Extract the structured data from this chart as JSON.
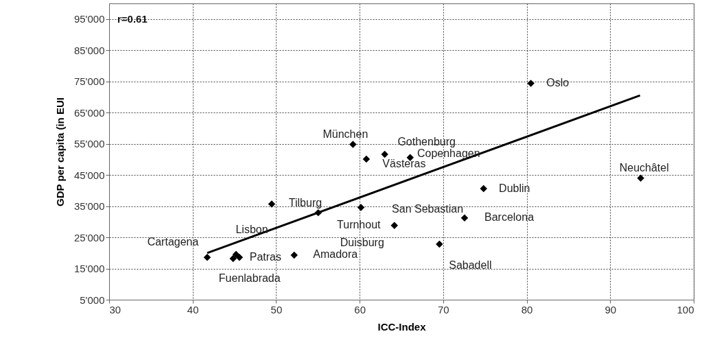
{
  "chart_data": {
    "type": "scatter",
    "xlabel": "ICC-Index",
    "ylabel": "GDP per capita (in EUI",
    "xlim": [
      30,
      100
    ],
    "xticks": [
      30,
      40,
      50,
      60,
      70,
      80,
      90,
      100
    ],
    "ylim": [
      5000,
      100000
    ],
    "yticks": [
      {
        "value": 5000,
        "label": "5'000"
      },
      {
        "value": 15000,
        "label": "15'000"
      },
      {
        "value": 25000,
        "label": "25'000"
      },
      {
        "value": 35000,
        "label": "35'000"
      },
      {
        "value": 45000,
        "label": "45'000"
      },
      {
        "value": 55000,
        "label": "55'000"
      },
      {
        "value": 65000,
        "label": "65'000"
      },
      {
        "value": 75000,
        "label": "75'000"
      },
      {
        "value": 85000,
        "label": "85'000"
      },
      {
        "value": 95000,
        "label": "95'000"
      }
    ],
    "grid": true,
    "marker": "diamond",
    "series": [
      {
        "color": "#000000",
        "x": [
          41.75,
          44.85,
          45.2,
          45.6,
          52.16,
          49.47,
          55.04,
          59.2,
          60.8,
          63.0,
          66.05,
          74.84,
          60.16,
          72.56,
          64.16,
          69.55,
          80.5,
          93.65
        ],
        "values": [
          18600,
          18200,
          19500,
          18600,
          19300,
          35700,
          32900,
          54800,
          50100,
          51600,
          50600,
          40600,
          34600,
          31200,
          28800,
          22800,
          74400,
          44000
        ]
      },
      {
        "type": "line",
        "color": "#000000",
        "marker": "none",
        "line_style": "solid",
        "x": [
          41.75,
          93.57
        ],
        "values": [
          20000,
          70500
        ]
      }
    ],
    "annotations": [
      "r=0.61",
      {
        "text": "Cartagena",
        "x": 41.75,
        "y": 18600
      },
      {
        "text": "Fuenlabrada",
        "x": 44.85,
        "y": 18200
      },
      {
        "text": "Patras",
        "x": 45.6,
        "y": 18600
      },
      {
        "text": "Amadora",
        "x": 52.16,
        "y": 19300
      },
      {
        "text": "Lisbon",
        "x": 45.2,
        "y": 19500
      },
      {
        "text": "Tilburg",
        "x": 49.47,
        "y": 35700
      },
      {
        "text": "München",
        "x": 59.2,
        "y": 54800
      },
      {
        "text": "Gothenburg",
        "x": 63.0,
        "y": 51600
      },
      {
        "text": "Västeras",
        "x": 60.8,
        "y": 50100
      },
      {
        "text": "Copenhagen",
        "x": 66.05,
        "y": 50600
      },
      {
        "text": "San Sebastian",
        "x": 60.16,
        "y": 34600
      },
      {
        "text": "Turnhout",
        "x": 64.16,
        "y": 28800
      },
      {
        "text": "Duisburg",
        "x": 55.04,
        "y": 32900
      },
      {
        "text": "Sabadell",
        "x": 69.55,
        "y": 22800
      },
      {
        "text": "Barcelona",
        "x": 72.56,
        "y": 31200
      },
      {
        "text": "Dublin",
        "x": 74.84,
        "y": 40600
      },
      {
        "text": "Oslo",
        "x": 80.5,
        "y": 74400
      },
      {
        "text": "Neuchâtel",
        "x": 93.65,
        "y": 44000
      }
    ]
  }
}
